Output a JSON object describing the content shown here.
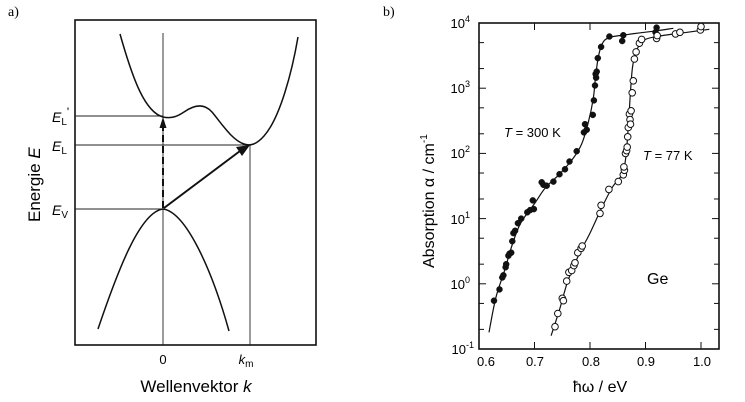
{
  "panel_a": {
    "label": "a)",
    "ylabel": "Energie",
    "ylabel_var": "E",
    "xlabel": "Wellenvektor",
    "xlabel_var": "k",
    "x_ticks": [
      {
        "label": "0",
        "sub": ""
      },
      {
        "label": "k",
        "sub": "m"
      }
    ],
    "levels": [
      {
        "name": "E_L'",
        "main": "E",
        "sub": "L",
        "prime": "'"
      },
      {
        "name": "E_L",
        "main": "E",
        "sub": "L",
        "prime": ""
      },
      {
        "name": "E_V",
        "main": "E",
        "sub": "V",
        "prime": ""
      }
    ],
    "transitions": [
      {
        "type": "direct",
        "style": "dashed",
        "from": "E_V at k=0",
        "to": "E_L' at k=0"
      },
      {
        "type": "indirect",
        "style": "solid",
        "from": "E_V at k=0",
        "to": "E_L at k=k_m"
      }
    ]
  },
  "panel_b": {
    "label": "b)",
    "ylabel": "Absorption α / cm",
    "ylabel_exp": "-1",
    "xlabel": "ħω  /  eV",
    "x_ticks": [
      "0.6",
      "0.7",
      "0.8",
      "0.9",
      "1.0"
    ],
    "y_ticks": [
      {
        "base": "10",
        "exp": "4"
      },
      {
        "base": "10",
        "exp": "3"
      },
      {
        "base": "10",
        "exp": "2"
      },
      {
        "base": "10",
        "exp": "1"
      },
      {
        "base": "10",
        "exp": "0"
      },
      {
        "base": "10",
        "exp": "-1"
      }
    ],
    "annotations": {
      "t300": {
        "var": "T",
        "text": " = 300 K"
      },
      "t77": {
        "var": "T",
        "text": " = 77 K"
      },
      "material": "Ge"
    }
  },
  "chart_data": [
    {
      "type": "diagram",
      "title": "Band structure schematic (indirect semiconductor)",
      "xlabel": "Wellenvektor k",
      "ylabel": "Energie E",
      "x_ticks": [
        "0",
        "k_m"
      ],
      "y_levels": [
        "E_L'",
        "E_L",
        "E_V"
      ],
      "curves": [
        {
          "name": "conduction band",
          "description": "local minimum E_L' at k=0, global minimum E_L at k=k_m"
        },
        {
          "name": "valence band",
          "description": "maximum E_V at k=0"
        }
      ],
      "arrows": [
        {
          "name": "direct transition",
          "style": "dashed",
          "from": [
            0,
            "E_V"
          ],
          "to": [
            0,
            "E_L'"
          ]
        },
        {
          "name": "indirect transition",
          "style": "solid",
          "from": [
            0,
            "E_V"
          ],
          "to": [
            "k_m",
            "E_L"
          ]
        }
      ]
    },
    {
      "type": "scatter",
      "title": "Absorption of Ge",
      "xlabel": "ħω / eV",
      "ylabel": "Absorption α / cm^-1",
      "xlim": [
        0.6,
        1.03
      ],
      "ylim": [
        0.1,
        10000
      ],
      "yscale": "log",
      "x_ticks": [
        0.6,
        0.7,
        0.8,
        0.9,
        1.0
      ],
      "y_ticks": [
        0.1,
        1,
        10,
        100,
        1000,
        10000
      ],
      "annotations": [
        "T = 300 K",
        "T = 77 K",
        "Ge"
      ],
      "series": [
        {
          "name": "T = 300 K",
          "marker": "filled circle",
          "x": [
            0.627,
            0.637,
            0.642,
            0.644,
            0.648,
            0.649,
            0.653,
            0.655,
            0.658,
            0.66,
            0.662,
            0.665,
            0.67,
            0.676,
            0.687,
            0.692,
            0.697,
            0.699,
            0.713,
            0.716,
            0.722,
            0.734,
            0.745,
            0.755,
            0.763,
            0.776,
            0.789,
            0.791,
            0.794,
            0.805,
            0.807,
            0.809,
            0.81,
            0.811,
            0.812,
            0.814,
            0.82,
            0.835,
            0.858,
            0.86,
            0.918,
            0.92
          ],
          "y": [
            0.55,
            0.82,
            1.25,
            1.35,
            1.8,
            2.0,
            2.7,
            2.9,
            3.0,
            4.5,
            6.0,
            6.5,
            8.5,
            10,
            12.5,
            13.5,
            19,
            14,
            36,
            33,
            32,
            37,
            48,
            57,
            75,
            108,
            210,
            280,
            230,
            390,
            650,
            1100,
            1650,
            1450,
            1800,
            2900,
            4300,
            6200,
            5300,
            6500,
            7200,
            8500
          ]
        },
        {
          "name": "T = 77 K",
          "marker": "open circle",
          "x": [
            0.737,
            0.742,
            0.75,
            0.752,
            0.758,
            0.762,
            0.767,
            0.771,
            0.773,
            0.778,
            0.784,
            0.786,
            0.818,
            0.82,
            0.834,
            0.851,
            0.86,
            0.862,
            0.861,
            0.864,
            0.866,
            0.867,
            0.868,
            0.869,
            0.871,
            0.872,
            0.873,
            0.874,
            0.876,
            0.878,
            0.88,
            0.883,
            0.889,
            0.893,
            0.92,
            0.921,
            0.954,
            0.962,
            0.999,
            1.0
          ],
          "y": [
            0.22,
            0.35,
            0.6,
            0.55,
            1.1,
            1.5,
            1.6,
            1.9,
            2.1,
            3.0,
            3.5,
            3.8,
            12,
            16,
            28,
            37,
            47,
            55,
            62,
            100,
            110,
            125,
            180,
            250,
            400,
            330,
            280,
            450,
            850,
            1300,
            2800,
            3600,
            4900,
            5600,
            5800,
            6400,
            6800,
            7200,
            7800,
            8800
          ]
        }
      ]
    }
  ]
}
